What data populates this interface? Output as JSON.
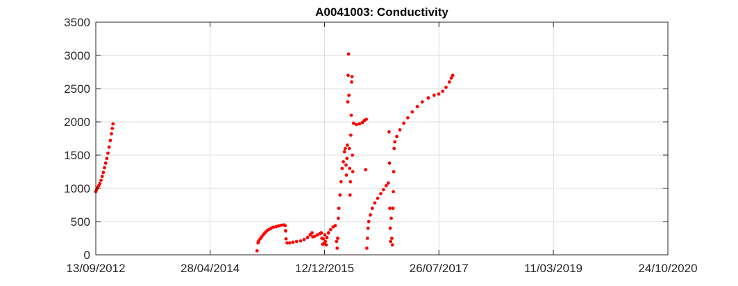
{
  "chart_data": {
    "type": "scatter",
    "title": "A0041003: Conductivity",
    "xlabel": "",
    "ylabel": "",
    "x_axis_type": "date",
    "xlim": [
      "2012-09-13",
      "2020-10-24"
    ],
    "ylim": [
      0,
      3500
    ],
    "x_ticks": [
      {
        "date": "2012-09-13",
        "label": "13/09/2012"
      },
      {
        "date": "2014-04-28",
        "label": "28/04/2014"
      },
      {
        "date": "2015-12-12",
        "label": "12/12/2015"
      },
      {
        "date": "2017-07-26",
        "label": "26/07/2017"
      },
      {
        "date": "2019-03-11",
        "label": "11/03/2019"
      },
      {
        "date": "2020-10-24",
        "label": "24/10/2020"
      }
    ],
    "y_ticks": [
      0,
      500,
      1000,
      1500,
      2000,
      2500,
      3000,
      3500
    ],
    "grid": true,
    "marker_color": "#ff0000",
    "series": [
      {
        "name": "",
        "points": [
          [
            "2012-09-13",
            950
          ],
          [
            "2012-09-17",
            980
          ],
          [
            "2012-09-22",
            1010
          ],
          [
            "2012-09-28",
            1040
          ],
          [
            "2012-10-04",
            1070
          ],
          [
            "2012-10-10",
            1120
          ],
          [
            "2012-10-16",
            1180
          ],
          [
            "2012-10-22",
            1240
          ],
          [
            "2012-10-28",
            1310
          ],
          [
            "2012-11-03",
            1380
          ],
          [
            "2012-11-09",
            1450
          ],
          [
            "2012-11-15",
            1530
          ],
          [
            "2012-11-21",
            1620
          ],
          [
            "2012-11-27",
            1720
          ],
          [
            "2012-12-03",
            1820
          ],
          [
            "2012-12-07",
            1900
          ],
          [
            "2012-12-11",
            1970
          ],
          [
            "2014-12-27",
            60
          ],
          [
            "2015-01-01",
            180
          ],
          [
            "2015-01-05",
            210
          ],
          [
            "2015-01-12",
            240
          ],
          [
            "2015-01-20",
            270
          ],
          [
            "2015-01-28",
            300
          ],
          [
            "2015-02-06",
            330
          ],
          [
            "2015-02-16",
            360
          ],
          [
            "2015-02-26",
            380
          ],
          [
            "2015-03-10",
            400
          ],
          [
            "2015-03-22",
            415
          ],
          [
            "2015-04-05",
            425
          ],
          [
            "2015-04-18",
            435
          ],
          [
            "2015-05-01",
            445
          ],
          [
            "2015-05-14",
            450
          ],
          [
            "2015-05-22",
            440
          ],
          [
            "2015-05-24",
            360
          ],
          [
            "2015-05-26",
            240
          ],
          [
            "2015-06-01",
            180
          ],
          [
            "2015-06-14",
            180
          ],
          [
            "2015-07-01",
            190
          ],
          [
            "2015-07-20",
            200
          ],
          [
            "2015-08-10",
            210
          ],
          [
            "2015-08-28",
            230
          ],
          [
            "2015-09-15",
            260
          ],
          [
            "2015-09-28",
            300
          ],
          [
            "2015-10-08",
            330
          ],
          [
            "2015-10-12",
            270
          ],
          [
            "2015-10-22",
            280
          ],
          [
            "2015-11-05",
            300
          ],
          [
            "2015-11-18",
            320
          ],
          [
            "2015-11-25",
            330
          ],
          [
            "2015-11-28",
            250
          ],
          [
            "2015-12-02",
            160
          ],
          [
            "2015-12-06",
            240
          ],
          [
            "2015-12-10",
            170
          ],
          [
            "2015-12-13",
            300
          ],
          [
            "2015-12-16",
            200
          ],
          [
            "2015-12-20",
            150
          ],
          [
            "2015-12-24",
            260
          ],
          [
            "2016-01-01",
            330
          ],
          [
            "2016-01-12",
            380
          ],
          [
            "2016-01-25",
            420
          ],
          [
            "2016-02-05",
            440
          ],
          [
            "2016-02-12",
            200
          ],
          [
            "2016-02-15",
            100
          ],
          [
            "2016-02-18",
            250
          ],
          [
            "2016-02-21",
            550
          ],
          [
            "2016-02-24",
            700
          ],
          [
            "2016-03-01",
            900
          ],
          [
            "2016-03-06",
            1100
          ],
          [
            "2016-03-12",
            1300
          ],
          [
            "2016-03-18",
            1400
          ],
          [
            "2016-03-24",
            1550
          ],
          [
            "2016-03-28",
            1600
          ],
          [
            "2016-04-01",
            1350
          ],
          [
            "2016-04-03",
            1200
          ],
          [
            "2016-04-06",
            1450
          ],
          [
            "2016-04-08",
            1650
          ],
          [
            "2016-04-10",
            2300
          ],
          [
            "2016-04-12",
            2700
          ],
          [
            "2016-04-14",
            3020
          ],
          [
            "2016-04-16",
            2400
          ],
          [
            "2016-04-18",
            1600
          ],
          [
            "2016-04-20",
            1300
          ],
          [
            "2016-04-22",
            900
          ],
          [
            "2016-04-24",
            1100
          ],
          [
            "2016-04-26",
            1800
          ],
          [
            "2016-04-28",
            2100
          ],
          [
            "2016-04-30",
            2600
          ],
          [
            "2016-05-02",
            2680
          ],
          [
            "2016-05-04",
            1500
          ],
          [
            "2016-05-06",
            1250
          ],
          [
            "2016-05-10",
            1980
          ],
          [
            "2016-05-25",
            1960
          ],
          [
            "2016-06-10",
            1970
          ],
          [
            "2016-06-25",
            1990
          ],
          [
            "2016-07-05",
            2020
          ],
          [
            "2016-07-15",
            2040
          ],
          [
            "2016-07-12",
            1280
          ],
          [
            "2016-07-18",
            100
          ],
          [
            "2016-07-21",
            250
          ],
          [
            "2016-07-24",
            400
          ],
          [
            "2016-07-28",
            500
          ],
          [
            "2016-08-05",
            600
          ],
          [
            "2016-08-15",
            700
          ],
          [
            "2016-08-28",
            780
          ],
          [
            "2016-09-12",
            850
          ],
          [
            "2016-09-28",
            920
          ],
          [
            "2016-10-12",
            980
          ],
          [
            "2016-10-26",
            1040
          ],
          [
            "2016-11-06",
            1080
          ],
          [
            "2016-11-10",
            1850
          ],
          [
            "2016-11-12",
            1380
          ],
          [
            "2016-11-14",
            700
          ],
          [
            "2016-11-16",
            400
          ],
          [
            "2016-11-18",
            200
          ],
          [
            "2016-11-21",
            550
          ],
          [
            "2016-11-24",
            250
          ],
          [
            "2016-11-27",
            150
          ],
          [
            "2016-11-30",
            700
          ],
          [
            "2016-12-02",
            950
          ],
          [
            "2016-12-04",
            1250
          ],
          [
            "2016-12-06",
            1600
          ],
          [
            "2016-12-10",
            1700
          ],
          [
            "2016-12-20",
            1780
          ],
          [
            "2017-01-05",
            1880
          ],
          [
            "2017-01-25",
            1980
          ],
          [
            "2017-02-15",
            2060
          ],
          [
            "2017-03-10",
            2150
          ],
          [
            "2017-04-05",
            2230
          ],
          [
            "2017-05-01",
            2300
          ],
          [
            "2017-06-01",
            2360
          ],
          [
            "2017-07-01",
            2400
          ],
          [
            "2017-07-25",
            2420
          ],
          [
            "2017-08-15",
            2460
          ],
          [
            "2017-09-01",
            2520
          ],
          [
            "2017-09-18",
            2600
          ],
          [
            "2017-09-28",
            2660
          ],
          [
            "2017-10-06",
            2700
          ]
        ]
      }
    ]
  }
}
